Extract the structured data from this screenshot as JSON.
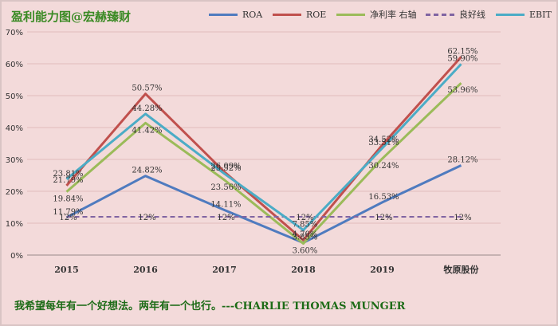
{
  "title": "盈利能力图@宏赫臻财",
  "quote": "我希望每年有一个好想法。两年有一个也行。---CHARLIE THOMAS MUNGER",
  "colors": {
    "ROA": "#4f7bbf",
    "ROE": "#c0504d",
    "net_margin": "#9bbb59",
    "good_line": "#8064a2",
    "EBIT": "#4bacc6"
  },
  "chart_data": {
    "type": "line",
    "categories": [
      "2015",
      "2016",
      "2017",
      "2018",
      "2019",
      "牧原股份"
    ],
    "ylim": [
      0,
      70
    ],
    "ytick_labels": [
      "0%",
      "10%",
      "20%",
      "30%",
      "40%",
      "50%",
      "60%",
      "70%"
    ],
    "grid": true,
    "legend": "top",
    "series": [
      {
        "name": "ROA",
        "key": "ROA",
        "values": [
          11.79,
          24.82,
          14.11,
          3.85,
          16.53,
          28.12
        ],
        "labels": [
          "11.79%",
          "24.82%",
          "14.11%",
          "3.85%",
          "16.53%",
          "28.12%"
        ]
      },
      {
        "name": "ROE",
        "key": "ROE",
        "values": [
          21.79,
          50.57,
          26.09,
          4.7,
          34.52,
          62.15
        ],
        "labels": [
          "21.79%",
          "50.57%",
          "26.09%",
          "4.70%",
          "34.52%",
          "62.15%"
        ]
      },
      {
        "name": "净利率 右轴",
        "key": "net_margin",
        "values": [
          19.84,
          41.42,
          23.56,
          3.6,
          30.24,
          53.96
        ],
        "labels": [
          "19.84%",
          "41.42%",
          "23.56%",
          "3.60%",
          "30.24%",
          "53.96%"
        ]
      },
      {
        "name": "良好线",
        "key": "good_line",
        "values": [
          12,
          12,
          12,
          12,
          12,
          12
        ],
        "labels": [
          "12%",
          "12%",
          "12%",
          "12%",
          "12%",
          "12%"
        ],
        "dashed": true
      },
      {
        "name": "EBIT",
        "key": "EBIT",
        "values": [
          23.81,
          44.28,
          25.52,
          7.85,
          33.51,
          59.9
        ],
        "labels": [
          "23.81%",
          "44.28%",
          "25.52%",
          "7.85%",
          "33.51%",
          "59.90%"
        ]
      }
    ]
  }
}
